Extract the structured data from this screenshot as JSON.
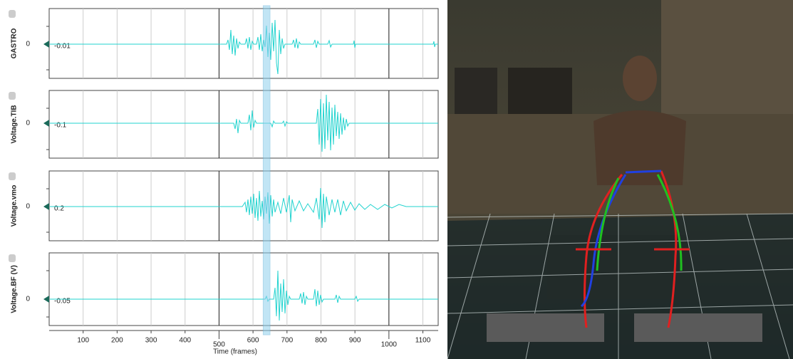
{
  "plots": [
    {
      "label": "GASTRO",
      "yticks": [
        0
      ],
      "cursor_value": -0.01
    },
    {
      "label": "Voltage.TIB",
      "yticks": [
        0
      ],
      "cursor_value": -0.1
    },
    {
      "label": "Voltage.vmo",
      "yticks": [
        0
      ],
      "cursor_value": 0.2
    },
    {
      "label": "Voltage.BF (V)",
      "yticks": [
        0
      ],
      "cursor_value": -0.05
    }
  ],
  "x_axis": {
    "title": "Time (frames)",
    "xlim": [
      0,
      1145
    ],
    "xticks": [
      100,
      200,
      300,
      400,
      500,
      600,
      700,
      800,
      900,
      1000,
      1100
    ],
    "major_ticks": [
      500,
      1000
    ]
  },
  "selection": [
    630,
    650
  ]
}
